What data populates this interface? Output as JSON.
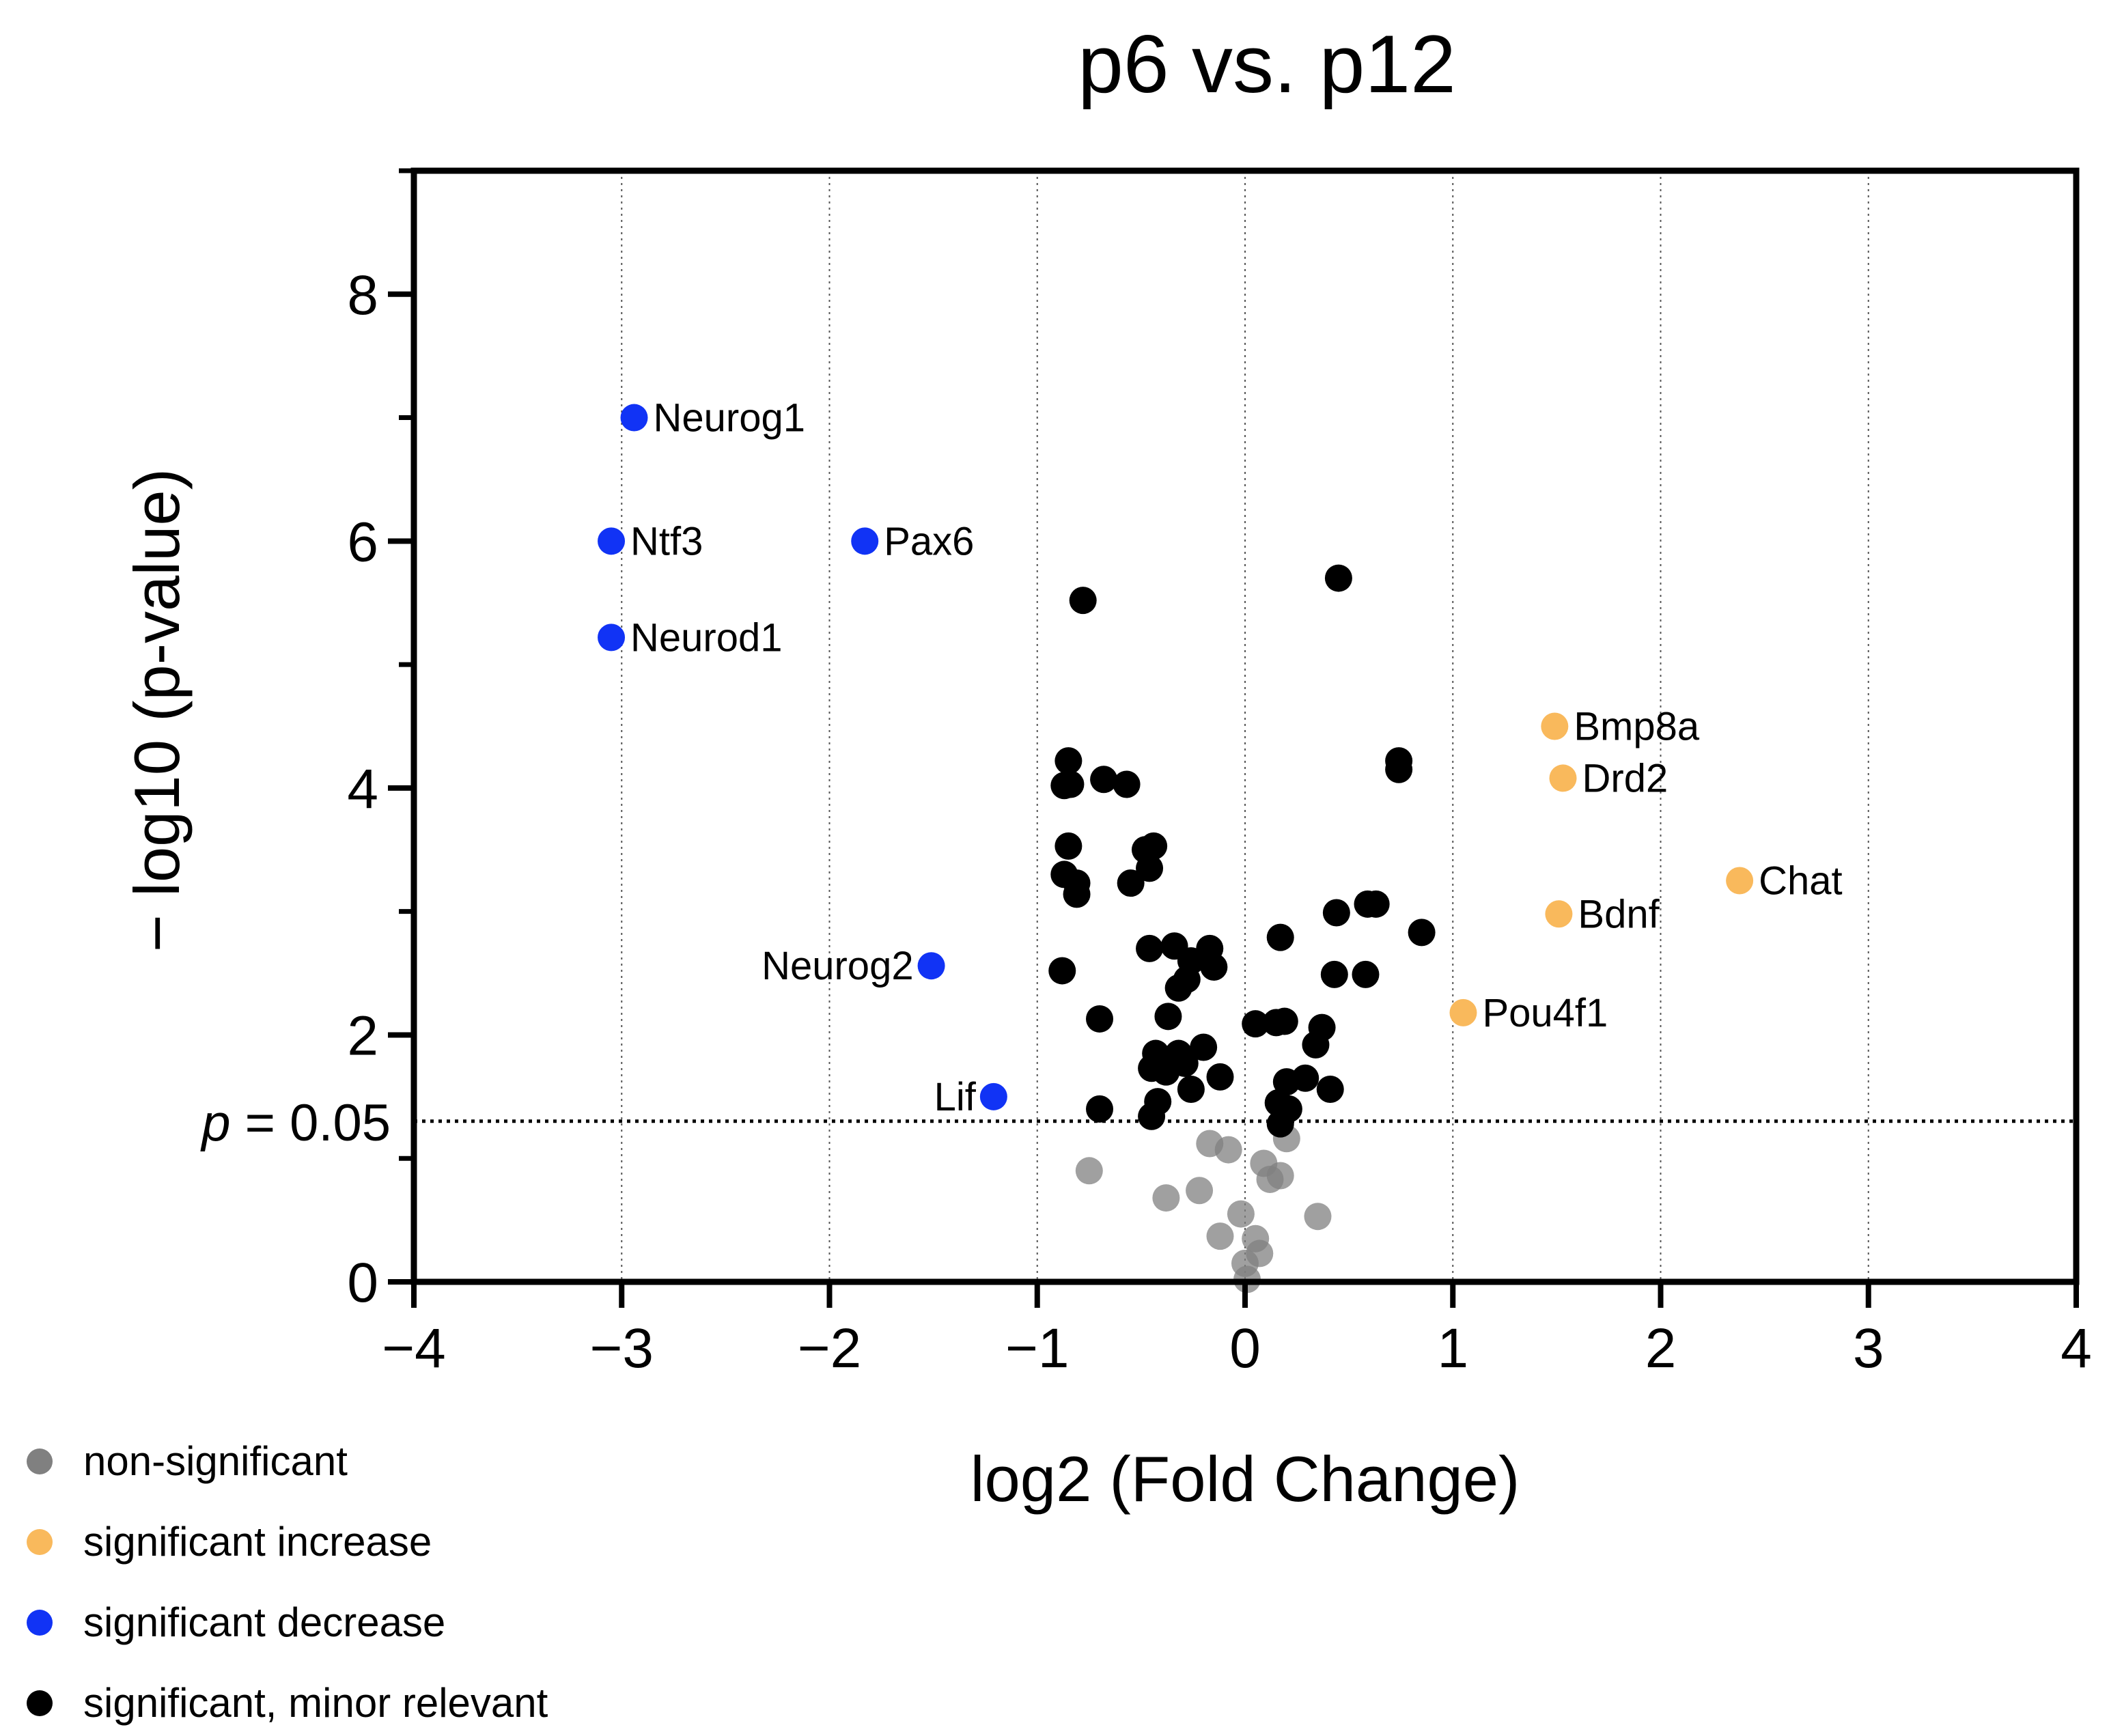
{
  "chart_data": {
    "type": "scatter",
    "title": "p6 vs. p12",
    "xlabel": "log2 (Fold Change)",
    "ylabel": "− log10 (p-value)",
    "xlim": [
      -4,
      4
    ],
    "ylim": [
      0,
      9
    ],
    "x_ticks": [
      -4,
      -3,
      -2,
      -1,
      0,
      1,
      2,
      3,
      4
    ],
    "x_tick_labels": [
      "−4",
      "−3",
      "−2",
      "−1",
      "0",
      "1",
      "2",
      "3",
      "4"
    ],
    "y_ticks": [
      0,
      2,
      4,
      6,
      8
    ],
    "y_tick_labels": [
      "0",
      "2",
      "4",
      "6",
      "8"
    ],
    "y_minor_ticks": [
      1,
      3,
      5,
      7,
      9
    ],
    "grid": "vertical dotted lines at each x tick",
    "threshold": {
      "y": 1.301,
      "label_prefix": "p",
      "label_suffix": " = 0.05",
      "style": "dotted"
    },
    "legend_position": "bottom-left, below plot",
    "series": [
      {
        "name": "non-significant",
        "color": "#808080",
        "points": [
          {
            "x": -0.75,
            "y": 0.9
          },
          {
            "x": -0.38,
            "y": 0.68
          },
          {
            "x": -0.22,
            "y": 0.74
          },
          {
            "x": -0.17,
            "y": 1.12
          },
          {
            "x": -0.08,
            "y": 1.07
          },
          {
            "x": -0.12,
            "y": 0.37
          },
          {
            "x": -0.02,
            "y": 0.55
          },
          {
            "x": 0.05,
            "y": 0.35
          },
          {
            "x": 0.07,
            "y": 0.23
          },
          {
            "x": 0.09,
            "y": 0.96
          },
          {
            "x": 0.12,
            "y": 0.83
          },
          {
            "x": 0.17,
            "y": 0.86
          },
          {
            "x": 0.2,
            "y": 1.16
          },
          {
            "x": 0.35,
            "y": 0.53
          },
          {
            "x": 0.0,
            "y": 0.15
          },
          {
            "x": 0.01,
            "y": 0.02
          }
        ]
      },
      {
        "name": "significant increase",
        "color": "#F9B95C",
        "points": [
          {
            "x": 1.49,
            "y": 4.5,
            "label": "Bmp8a"
          },
          {
            "x": 1.53,
            "y": 4.08,
            "label": "Drd2"
          },
          {
            "x": 2.38,
            "y": 3.25,
            "label": "Chat"
          },
          {
            "x": 1.51,
            "y": 2.98,
            "label": "Bdnf"
          },
          {
            "x": 1.05,
            "y": 2.18,
            "label": "Pou4f1"
          }
        ]
      },
      {
        "name": "significant decrease",
        "color": "#1133F5",
        "points": [
          {
            "x": -2.94,
            "y": 7.0,
            "label": "Neurog1"
          },
          {
            "x": -3.05,
            "y": 6.0,
            "label": "Ntf3"
          },
          {
            "x": -1.83,
            "y": 6.0,
            "label": "Pax6"
          },
          {
            "x": -3.05,
            "y": 5.22,
            "label": "Neurod1"
          },
          {
            "x": -1.51,
            "y": 2.56,
            "label": "Neurog2"
          },
          {
            "x": -1.21,
            "y": 1.5,
            "label": "Lif"
          }
        ]
      },
      {
        "name": "significant, minor relevant",
        "color": "#000000",
        "points": [
          {
            "x": -0.78,
            "y": 5.52
          },
          {
            "x": 0.45,
            "y": 5.7
          },
          {
            "x": -0.85,
            "y": 4.22
          },
          {
            "x": -0.87,
            "y": 4.02
          },
          {
            "x": -0.84,
            "y": 4.03
          },
          {
            "x": -0.68,
            "y": 4.07
          },
          {
            "x": -0.57,
            "y": 4.03
          },
          {
            "x": 0.74,
            "y": 4.22
          },
          {
            "x": 0.74,
            "y": 4.15
          },
          {
            "x": -0.85,
            "y": 3.53
          },
          {
            "x": -0.87,
            "y": 3.3
          },
          {
            "x": -0.81,
            "y": 3.23
          },
          {
            "x": -0.81,
            "y": 3.14
          },
          {
            "x": -0.48,
            "y": 3.5
          },
          {
            "x": -0.44,
            "y": 3.53
          },
          {
            "x": -0.46,
            "y": 3.35
          },
          {
            "x": -0.55,
            "y": 3.23
          },
          {
            "x": 0.44,
            "y": 2.99
          },
          {
            "x": 0.59,
            "y": 3.06
          },
          {
            "x": 0.63,
            "y": 3.06
          },
          {
            "x": 0.85,
            "y": 2.83
          },
          {
            "x": 0.17,
            "y": 2.79
          },
          {
            "x": -0.46,
            "y": 2.7
          },
          {
            "x": -0.34,
            "y": 2.72
          },
          {
            "x": -0.17,
            "y": 2.7
          },
          {
            "x": -0.26,
            "y": 2.6
          },
          {
            "x": -0.15,
            "y": 2.55
          },
          {
            "x": -0.28,
            "y": 2.45
          },
          {
            "x": -0.32,
            "y": 2.38
          },
          {
            "x": -0.88,
            "y": 2.52
          },
          {
            "x": 0.43,
            "y": 2.49
          },
          {
            "x": 0.58,
            "y": 2.49
          },
          {
            "x": -0.7,
            "y": 2.13
          },
          {
            "x": -0.37,
            "y": 2.15
          },
          {
            "x": 0.05,
            "y": 2.09
          },
          {
            "x": 0.15,
            "y": 2.1
          },
          {
            "x": 0.19,
            "y": 2.11
          },
          {
            "x": 0.37,
            "y": 2.06
          },
          {
            "x": 0.34,
            "y": 1.92
          },
          {
            "x": -0.2,
            "y": 1.9
          },
          {
            "x": -0.43,
            "y": 1.85
          },
          {
            "x": -0.32,
            "y": 1.85
          },
          {
            "x": -0.29,
            "y": 1.77
          },
          {
            "x": -0.45,
            "y": 1.73
          },
          {
            "x": -0.38,
            "y": 1.7
          },
          {
            "x": -0.12,
            "y": 1.66
          },
          {
            "x": -0.26,
            "y": 1.56
          },
          {
            "x": 0.2,
            "y": 1.62
          },
          {
            "x": 0.29,
            "y": 1.65
          },
          {
            "x": 0.41,
            "y": 1.56
          },
          {
            "x": -0.42,
            "y": 1.46
          },
          {
            "x": -0.45,
            "y": 1.34
          },
          {
            "x": -0.7,
            "y": 1.4
          },
          {
            "x": 0.16,
            "y": 1.45
          },
          {
            "x": 0.21,
            "y": 1.4
          },
          {
            "x": 0.17,
            "y": 1.28
          }
        ]
      }
    ]
  }
}
